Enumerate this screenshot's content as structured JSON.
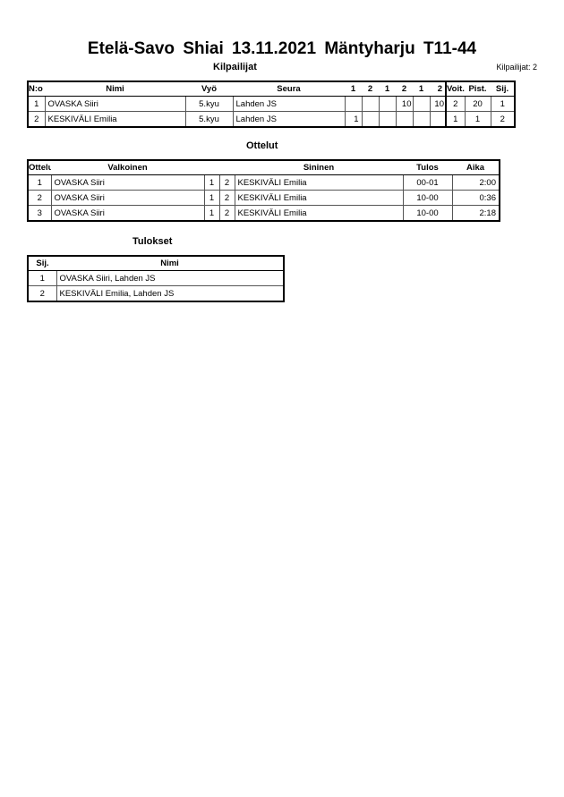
{
  "header": {
    "title": "Etelä-Savo Shiai  13.11.2021  Mäntyharju   T11-44",
    "subtitle": "Kilpailijat",
    "competitor_count": "Kilpailijat: 2"
  },
  "competitors": {
    "columns": [
      "N:o",
      "Nimi",
      "Vyö",
      "Seura",
      "1",
      "2",
      "1",
      "2",
      "1",
      "2",
      "Voit.",
      "Pist.",
      "Sij."
    ],
    "rows": [
      {
        "no": "1",
        "name": "OVASKA Siiri",
        "belt": "5.kyu",
        "club": "Lahden JS",
        "scores": [
          "",
          "",
          "",
          "10",
          "",
          "10"
        ],
        "wins": "2",
        "points": "20",
        "rank": "1"
      },
      {
        "no": "2",
        "name": "KESKIVÄLI Emilia",
        "belt": "5.kyu",
        "club": "Lahden JS",
        "scores": [
          "1",
          "",
          "",
          "",
          "",
          ""
        ],
        "wins": "1",
        "points": "1",
        "rank": "2"
      }
    ]
  },
  "matches": {
    "title": "Ottelut",
    "columns": [
      "Ottelu",
      "Valkoinen",
      "Sininen",
      "Tulos",
      "Aika"
    ],
    "rows": [
      {
        "no": "1",
        "white": "OVASKA Siiri",
        "wn": "1",
        "bn": "2",
        "blue": "KESKIVÄLI Emilia",
        "result": "00-01",
        "time": "2:00"
      },
      {
        "no": "2",
        "white": "OVASKA Siiri",
        "wn": "1",
        "bn": "2",
        "blue": "KESKIVÄLI Emilia",
        "result": "10-00",
        "time": "0:36"
      },
      {
        "no": "3",
        "white": "OVASKA Siiri",
        "wn": "1",
        "bn": "2",
        "blue": "KESKIVÄLI Emilia",
        "result": "10-00",
        "time": "2:18"
      }
    ]
  },
  "results": {
    "title": "Tulokset",
    "columns": [
      "Sij.",
      "Nimi"
    ],
    "rows": [
      {
        "rank": "1",
        "name": "OVASKA Siiri, Lahden JS"
      },
      {
        "rank": "2",
        "name": "KESKIVÄLI Emilia, Lahden JS"
      }
    ]
  }
}
